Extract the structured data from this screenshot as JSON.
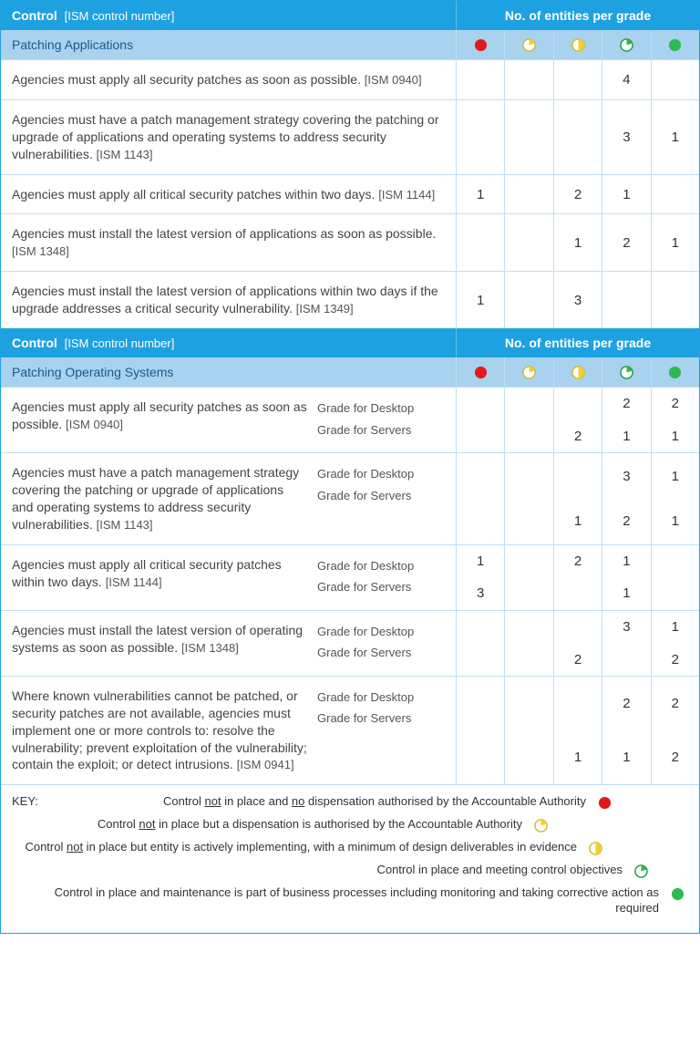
{
  "colors": {
    "red": "#e01a1a",
    "yellow": "#f0d030",
    "green": "#2fb850",
    "stroke_yellow": "#d4b820",
    "stroke_green": "#1f9840"
  },
  "header": {
    "control_label": "Control",
    "control_sub": "[ISM control number]",
    "grades_label": "No. of entities per grade"
  },
  "section1": {
    "title": "Patching Applications",
    "rows": [
      {
        "desc": "Agencies must apply all security patches as soon as possible.",
        "ism": "[ISM 0940]",
        "vals": [
          "",
          "",
          "",
          "4",
          ""
        ]
      },
      {
        "desc": "Agencies must have a patch management strategy covering the patching or upgrade of applications and operating systems to address security vulnerabilities.",
        "ism": "[ISM 1143]",
        "vals": [
          "",
          "",
          "",
          "3",
          "1"
        ]
      },
      {
        "desc": "Agencies must apply all critical security patches within two days.",
        "ism": "[ISM 1144]",
        "vals": [
          "1",
          "",
          "2",
          "1",
          ""
        ]
      },
      {
        "desc": "Agencies must install the latest version of applications as soon as possible.",
        "ism": "[ISM 1348]",
        "vals": [
          "",
          "",
          "1",
          "2",
          "1"
        ]
      },
      {
        "desc": "Agencies must install the latest version of applications within two days if the upgrade addresses a critical security vulnerability.",
        "ism": "[ISM 1349]",
        "vals": [
          "1",
          "",
          "3",
          "",
          ""
        ]
      }
    ]
  },
  "section2": {
    "title": "Patching Operating Systems",
    "sublabels": {
      "desktop": "Grade for Desktop",
      "servers": "Grade for Servers"
    },
    "rows": [
      {
        "desc": "Agencies must apply all security patches as soon as possible.",
        "ism": "[ISM 0940]",
        "desktop": [
          "",
          "",
          "",
          "2",
          "2"
        ],
        "servers": [
          "",
          "",
          "2",
          "1",
          "1"
        ]
      },
      {
        "desc": "Agencies must have a patch management strategy covering the patching or upgrade of applications and operating systems to address security vulnerabilities.",
        "ism": "[ISM 1143]",
        "desktop": [
          "",
          "",
          "",
          "3",
          "1"
        ],
        "servers": [
          "",
          "",
          "1",
          "2",
          "1"
        ]
      },
      {
        "desc": "Agencies must apply all critical security patches within two days.",
        "ism": "[ISM 1144]",
        "desktop": [
          "1",
          "",
          "2",
          "1",
          ""
        ],
        "servers": [
          "3",
          "",
          "",
          "1",
          ""
        ]
      },
      {
        "desc": "Agencies must install the latest version of operating systems as soon as possible.",
        "ism": "[ISM 1348]",
        "desktop": [
          "",
          "",
          "",
          "3",
          "1"
        ],
        "servers": [
          "",
          "",
          "2",
          "",
          "2"
        ]
      },
      {
        "desc": "Where known vulnerabilities cannot be patched, or security patches are not available, agencies must implement one or more controls to: resolve the vulnerability; prevent exploitation of the vulnerability; contain the exploit; or detect intrusions.",
        "ism": "[ISM 0941]",
        "desktop": [
          "",
          "",
          "",
          "2",
          "2"
        ],
        "servers": [
          "",
          "",
          "1",
          "1",
          "2"
        ]
      }
    ]
  },
  "key": {
    "label": "KEY:",
    "items": [
      {
        "text_html": "Control <span class='u'>not</span> in place and <span class='u'>no</span> dispensation authorised by the Accountable Authority",
        "icon": "red-full"
      },
      {
        "text_html": "Control <span class='u'>not</span> in place but a dispensation is authorised by the Accountable Authority",
        "icon": "yellow-q1"
      },
      {
        "text_html": "Control <span class='u'>not</span> in place but entity is actively implementing, with a minimum of design deliverables in evidence",
        "icon": "yellow-half"
      },
      {
        "text_html": "Control in place and meeting control objectives",
        "icon": "green-q3"
      },
      {
        "text_html": "Control in place and maintenance is part of business processes including monitoring and taking corrective action as required",
        "icon": "green-full"
      }
    ]
  }
}
